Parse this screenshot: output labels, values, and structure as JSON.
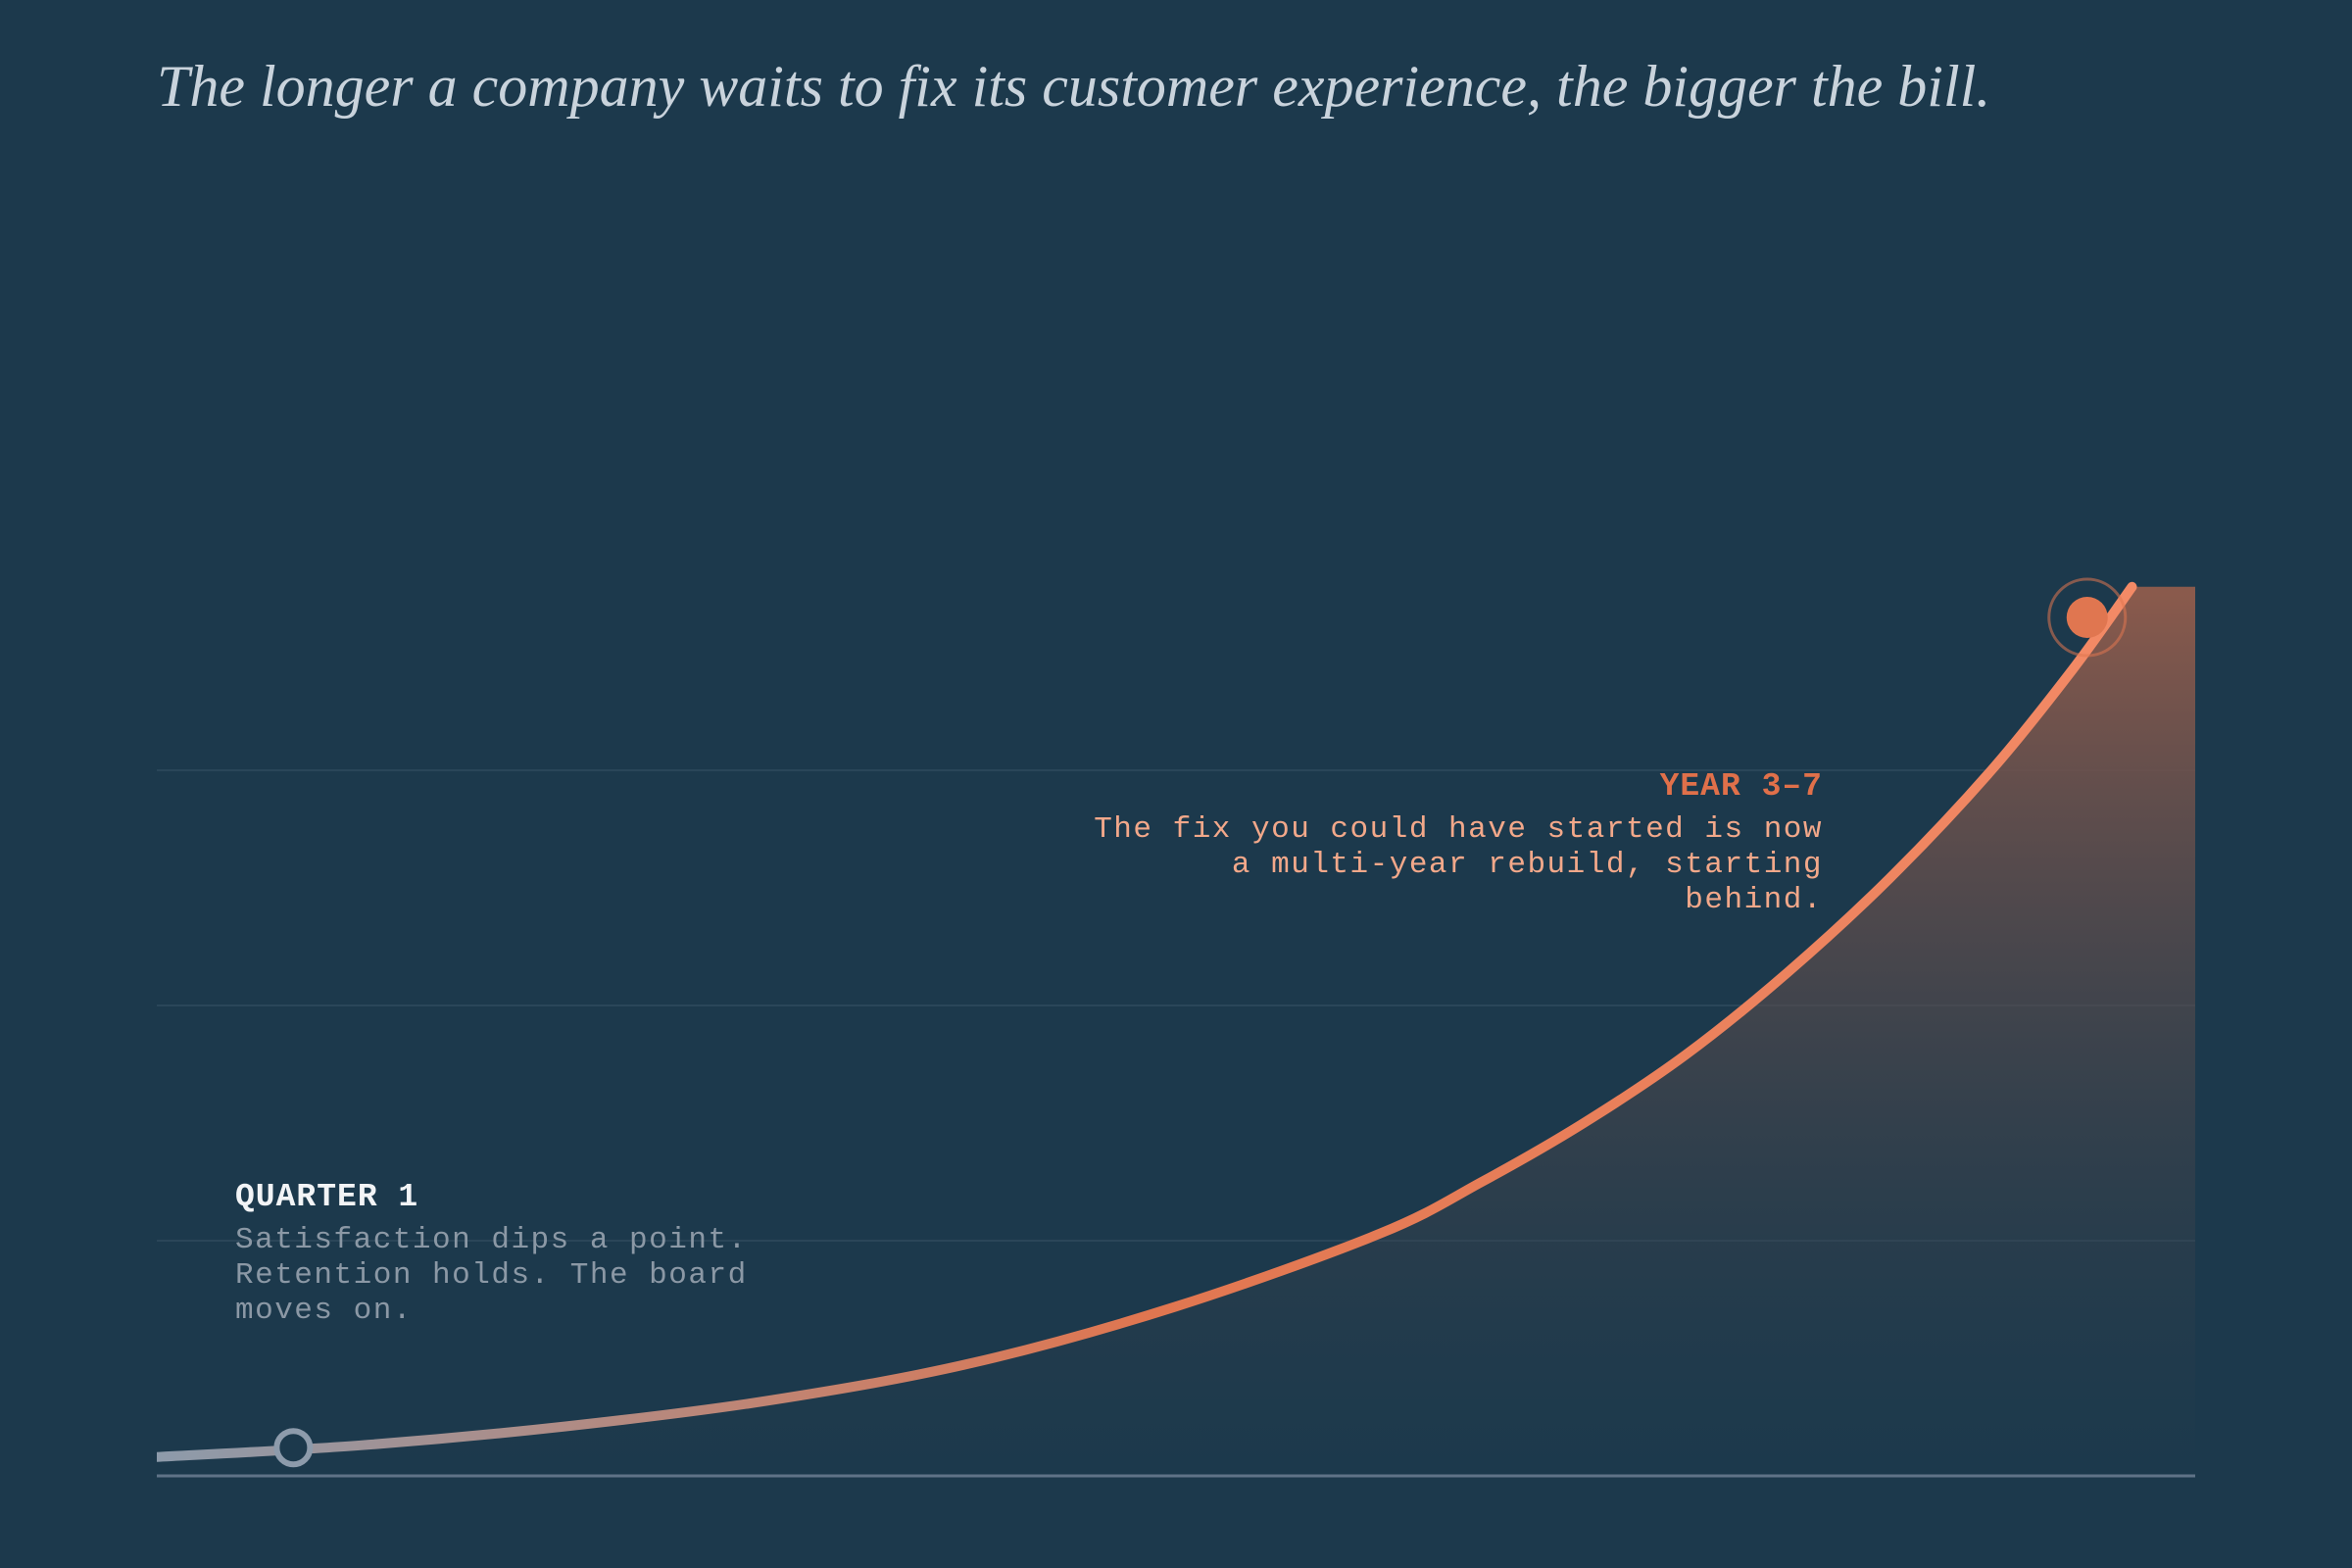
{
  "headline": "The longer a company waits to fix its customer experience, the bigger the bill.",
  "colors": {
    "background": "#1c394c",
    "gridline": "#2a4659",
    "baseline": "#5f7387",
    "curve_start": "#8d9bab",
    "curve_end": "#f38a66",
    "marker_start": "#8d9bab",
    "marker_end": "#e07650",
    "area_top": "#8a5a4c"
  },
  "annotations": {
    "start": {
      "title": "QUARTER 1",
      "body": "Satisfaction dips a point. Retention holds. The board moves on."
    },
    "end": {
      "title": "YEAR 3–7",
      "body": "The fix you could have started is now a multi-year rebuild, starting behind."
    }
  },
  "chart_data": {
    "type": "area",
    "title": "",
    "xlabel": "",
    "ylabel": "",
    "axes_visible": false,
    "grid": true,
    "gridlines": [
      1,
      2,
      3
    ],
    "xlim": [
      0,
      1
    ],
    "ylim": [
      0,
      3.75
    ],
    "series": [
      {
        "values": [
          {
            "x": 0.0,
            "y": 0.08
          },
          {
            "x": 0.1,
            "y": 0.13
          },
          {
            "x": 0.2,
            "y": 0.21
          },
          {
            "x": 0.3,
            "y": 0.32
          },
          {
            "x": 0.4,
            "y": 0.48
          },
          {
            "x": 0.5,
            "y": 0.72
          },
          {
            "x": 0.6,
            "y": 1.03
          },
          {
            "x": 0.65,
            "y": 1.25
          },
          {
            "x": 0.7,
            "y": 1.5
          },
          {
            "x": 0.75,
            "y": 1.79
          },
          {
            "x": 0.8,
            "y": 2.14
          },
          {
            "x": 0.85,
            "y": 2.54
          },
          {
            "x": 0.9,
            "y": 3.0
          },
          {
            "x": 0.94,
            "y": 3.43
          },
          {
            "x": 0.969,
            "y": 3.78
          }
        ]
      }
    ],
    "markers": [
      {
        "x": 0.067,
        "y": 0.12,
        "style": "hollow"
      },
      {
        "x": 0.947,
        "y": 3.65,
        "style": "filled-ring"
      }
    ]
  }
}
